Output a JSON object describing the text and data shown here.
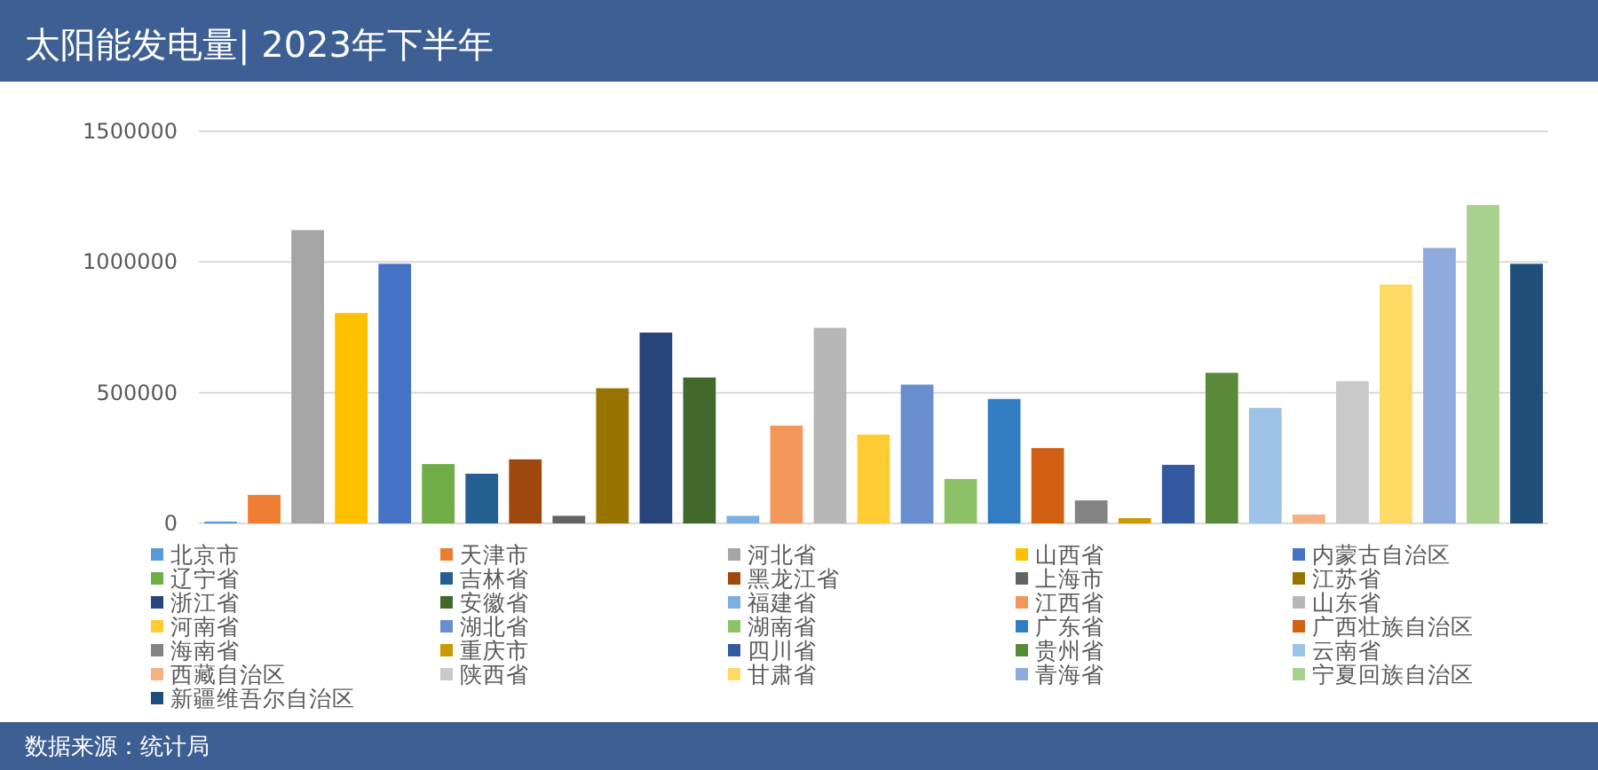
{
  "chart_data": {
    "type": "bar",
    "title": "太阳能发电量| 2023年下半年",
    "categories": [
      null
    ],
    "series": [
      {
        "name": "北京市",
        "color": "#5b9bd5",
        "values": [
          7000
        ]
      },
      {
        "name": "天津市",
        "color": "#ed7d31",
        "values": [
          109000
        ]
      },
      {
        "name": "河北省",
        "color": "#a5a5a5",
        "values": [
          1122000
        ]
      },
      {
        "name": "山西省",
        "color": "#ffc000",
        "values": [
          805000
        ]
      },
      {
        "name": "内蒙古自治区",
        "color": "#4472c4",
        "values": [
          993000
        ]
      },
      {
        "name": "辽宁省",
        "color": "#70ad47",
        "values": [
          227000
        ]
      },
      {
        "name": "吉林省",
        "color": "#255e91",
        "values": [
          190000
        ]
      },
      {
        "name": "黑龙江省",
        "color": "#9e480e",
        "values": [
          245000
        ]
      },
      {
        "name": "上海市",
        "color": "#636363",
        "values": [
          29000
        ]
      },
      {
        "name": "江苏省",
        "color": "#997300",
        "values": [
          517000
        ]
      },
      {
        "name": "浙江省",
        "color": "#264478",
        "values": [
          730000
        ]
      },
      {
        "name": "安徽省",
        "color": "#43682b",
        "values": [
          558000
        ]
      },
      {
        "name": "福建省",
        "color": "#7cafdd",
        "values": [
          29000
        ]
      },
      {
        "name": "江西省",
        "color": "#f1975a",
        "values": [
          374000
        ]
      },
      {
        "name": "山东省",
        "color": "#b7b7b7",
        "values": [
          748000
        ]
      },
      {
        "name": "河南省",
        "color": "#ffcd33",
        "values": [
          340000
        ]
      },
      {
        "name": "湖北省",
        "color": "#698ed0",
        "values": [
          531000
        ]
      },
      {
        "name": "湖南省",
        "color": "#8cc168",
        "values": [
          170000
        ]
      },
      {
        "name": "广东省",
        "color": "#327dc2",
        "values": [
          476000
        ]
      },
      {
        "name": "广西壮族自治区",
        "color": "#d26012",
        "values": [
          288000
        ]
      },
      {
        "name": "海南省",
        "color": "#848484",
        "values": [
          88000
        ]
      },
      {
        "name": "重庆市",
        "color": "#cc9a00",
        "values": [
          20000
        ]
      },
      {
        "name": "四川省",
        "color": "#335aa1",
        "values": [
          224000
        ]
      },
      {
        "name": "贵州省",
        "color": "#5a8a39",
        "values": [
          576000
        ]
      },
      {
        "name": "云南省",
        "color": "#9dc3e6",
        "values": [
          442000
        ]
      },
      {
        "name": "西藏自治区",
        "color": "#f4b183",
        "values": [
          34000
        ]
      },
      {
        "name": "陕西省",
        "color": "#c9c9c9",
        "values": [
          544000
        ]
      },
      {
        "name": "甘肃省",
        "color": "#ffd966",
        "values": [
          914000
        ]
      },
      {
        "name": "青海省",
        "color": "#8faadc",
        "values": [
          1054000
        ]
      },
      {
        "name": "宁夏回族自治区",
        "color": "#a9d18e",
        "values": [
          1218000
        ]
      },
      {
        "name": "新疆维吾尔自治区",
        "color": "#1f4e79",
        "values": [
          993000
        ]
      }
    ],
    "ylim": [
      0,
      1500000
    ],
    "yticks": [
      0,
      500000,
      1000000,
      1500000
    ],
    "grid": "y",
    "legend": "bottom",
    "tick_labels": "y",
    "annotations": [
      "数据来源：统计局"
    ]
  }
}
